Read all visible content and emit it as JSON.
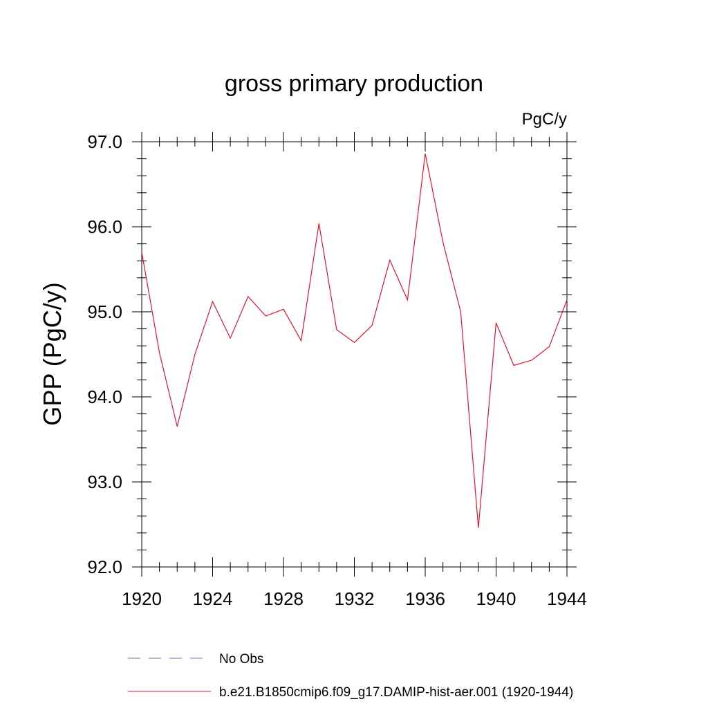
{
  "chart_data": {
    "type": "line",
    "title": "gross primary production",
    "units": "PgC/y",
    "ylabel": "GPP  (PgC/y)",
    "xlabel": "",
    "xlim": [
      1920,
      1944
    ],
    "ylim": [
      92.0,
      97.0
    ],
    "x_ticks": [
      1920,
      1924,
      1928,
      1932,
      1936,
      1940,
      1944
    ],
    "y_ticks": [
      "92.0",
      "93.0",
      "94.0",
      "95.0",
      "96.0",
      "97.0"
    ],
    "grid": false,
    "legend_position": "bottom",
    "series": [
      {
        "name": "b.e21.B1850cmip6.f09_g17.DAMIP-hist-aer.001 (1920-1944)",
        "color": "#e8112d",
        "style": "solid",
        "x": [
          1920,
          1921,
          1922,
          1923,
          1924,
          1925,
          1926,
          1927,
          1928,
          1929,
          1930,
          1931,
          1932,
          1933,
          1934,
          1935,
          1936,
          1937,
          1938,
          1939,
          1940,
          1941,
          1942,
          1943,
          1944
        ],
        "y": [
          95.7,
          94.52,
          93.65,
          94.5,
          95.12,
          94.69,
          95.18,
          94.95,
          95.03,
          94.66,
          96.04,
          94.79,
          94.64,
          94.84,
          95.61,
          95.14,
          96.86,
          95.82,
          95.0,
          92.46,
          94.87,
          94.37,
          94.43,
          94.59,
          95.14
        ]
      }
    ],
    "legend": [
      {
        "label": "No Obs",
        "color": "#7b6fb8",
        "style": "dashed"
      },
      {
        "label": "b.e21.B1850cmip6.f09_g17.DAMIP-hist-aer.001 (1920-1944)",
        "color": "#e8112d",
        "style": "solid"
      }
    ]
  }
}
